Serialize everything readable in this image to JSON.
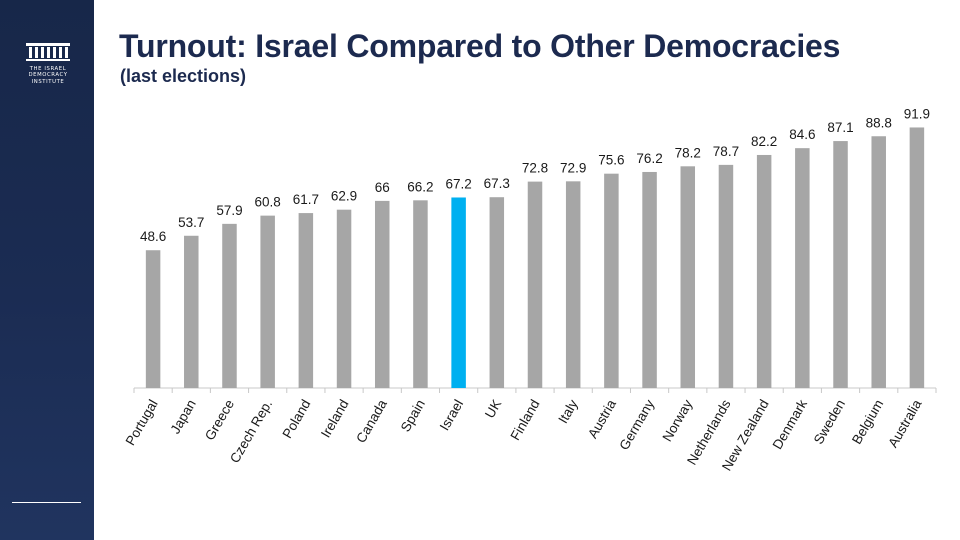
{
  "header": {
    "title": "Turnout: Israel Compared to Other Democracies",
    "subtitle": "(last elections)"
  },
  "logo": {
    "text": "THE ISRAEL\nDEMOCRACY\nINSTITUTE",
    "icon": "institute-columns-icon"
  },
  "colors": {
    "sidebar": "#1b2c53",
    "title": "#1c2a4f",
    "bar": "#a6a6a6",
    "highlight": "#00b0f0",
    "axis": "#c8c8c8",
    "label": "#1a1a1a"
  },
  "chart_data": {
    "type": "bar",
    "title": "Turnout: Israel Compared to Other Democracies",
    "subtitle": "(last elections)",
    "xlabel": "",
    "ylabel": "",
    "ylim": [
      0,
      100
    ],
    "grid": false,
    "legend": "none",
    "highlight_category": "Israel",
    "categories": [
      "Portugal",
      "Japan",
      "Greece",
      "Czech Rep.",
      "Poland",
      "Ireland",
      "Canada",
      "Spain",
      "Israel",
      "UK",
      "Finland",
      "Italy",
      "Austria",
      "Germany",
      "Norway",
      "Netherlands",
      "New Zealand",
      "Denmark",
      "Sweden",
      "Belgium",
      "Australia"
    ],
    "values": [
      48.6,
      53.7,
      57.9,
      60.8,
      61.7,
      62.9,
      66,
      66.2,
      67.2,
      67.3,
      72.8,
      72.9,
      75.6,
      76.2,
      78.2,
      78.7,
      82.2,
      84.6,
      87.1,
      88.8,
      91.9
    ]
  }
}
